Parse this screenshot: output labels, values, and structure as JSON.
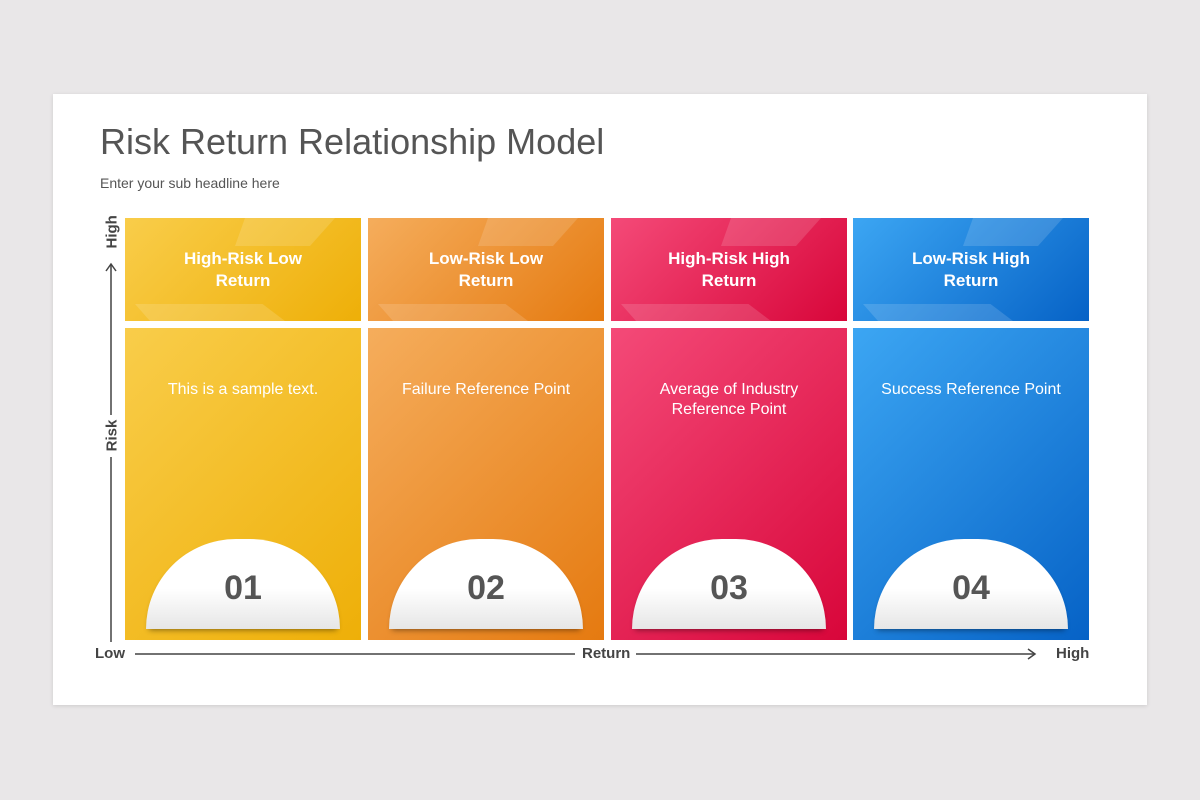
{
  "title": "Risk Return Relationship Model",
  "subtitle": "Enter your sub headline here",
  "axes": {
    "y_low": "Low",
    "y_high": "High",
    "y_label": "Risk",
    "x_label": "Return",
    "x_high": "High"
  },
  "cards": [
    {
      "heading": "High-Risk Low Return",
      "text": "This is a sample text.",
      "number": "01",
      "color_light": "#f9cd4a",
      "color_dark": "#eeaf08"
    },
    {
      "heading": "Low-Risk Low Return",
      "text": "Failure Reference Point",
      "number": "02",
      "color_light": "#f5ad5c",
      "color_dark": "#e57a10"
    },
    {
      "heading": "High-Risk High Return",
      "text": "Average of Industry Reference Point",
      "number": "03",
      "color_light": "#f44a78",
      "color_dark": "#d8063a"
    },
    {
      "heading": "Low-Risk High Return",
      "text": "Success Reference Point",
      "number": "04",
      "color_light": "#3ca6f3",
      "color_dark": "#0662c6"
    }
  ]
}
